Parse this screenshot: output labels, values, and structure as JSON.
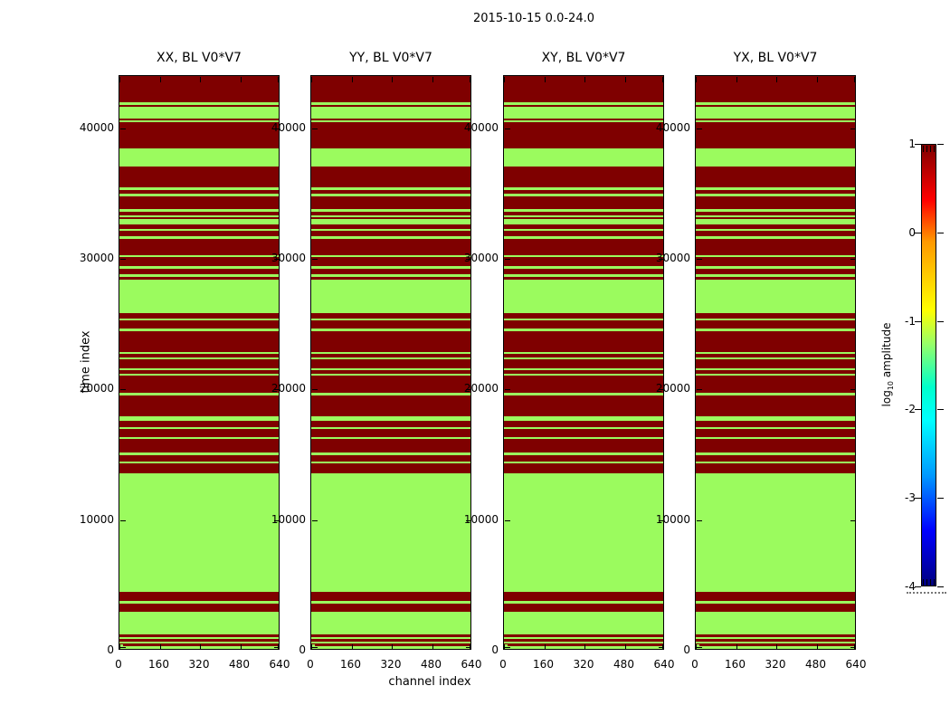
{
  "figure": {
    "title": "2015-10-15 0.0-24.0",
    "background": "#ffffff"
  },
  "chart_data": {
    "type": "heatmap",
    "suptitle": "2015-10-15 0.0-24.0",
    "panel_titles": [
      "XX, BL V0*V7",
      "YY, BL V0*V7",
      "XY, BL V0*V7",
      "YX, BL V0*V7"
    ],
    "xlabel": "channel index",
    "ylabel": "time index",
    "xlim": [
      0,
      640
    ],
    "ylim": [
      0,
      44000
    ],
    "x_ticks": [
      0,
      160,
      320,
      480,
      640
    ],
    "y_ticks": [
      0,
      10000,
      20000,
      30000,
      40000
    ],
    "colors": {
      "high_amplitude_red": "#7f0000",
      "low_amplitude_green": "#9bfb5e"
    },
    "green_time_bands": [
      [
        140,
        350
      ],
      [
        550,
        690
      ],
      [
        900,
        1040
      ],
      [
        1250,
        2980
      ],
      [
        3600,
        3790
      ],
      [
        4480,
        13600
      ],
      [
        14320,
        14500
      ],
      [
        14970,
        15150
      ],
      [
        16200,
        16380
      ],
      [
        16960,
        17140
      ],
      [
        17600,
        17950
      ],
      [
        19540,
        19730
      ],
      [
        21060,
        21220
      ],
      [
        21480,
        21640
      ],
      [
        22290,
        22450
      ],
      [
        22730,
        22870
      ],
      [
        24480,
        24670
      ],
      [
        25290,
        25430
      ],
      [
        25850,
        28430
      ],
      [
        28620,
        28800
      ],
      [
        29240,
        29420
      ],
      [
        30120,
        30300
      ],
      [
        31550,
        31740
      ],
      [
        32130,
        32310
      ],
      [
        32660,
        33050
      ],
      [
        33170,
        33350
      ],
      [
        33620,
        33810
      ],
      [
        34800,
        34970
      ],
      [
        35270,
        35500
      ],
      [
        37050,
        38430
      ],
      [
        40440,
        40600
      ],
      [
        40740,
        41670
      ],
      [
        41800,
        41970
      ]
    ],
    "corner_patch": {
      "channel_range": [
        0,
        14
      ],
      "time_range": [
        120,
        480
      ]
    },
    "colorbar": {
      "label_prefix": "log",
      "label_sub": "10",
      "label_suffix": " amplitude",
      "ticks": [
        1,
        0,
        -1,
        -2,
        -3,
        -4
      ],
      "vmin": -4,
      "vmax": 1,
      "colormap": "jet"
    }
  }
}
